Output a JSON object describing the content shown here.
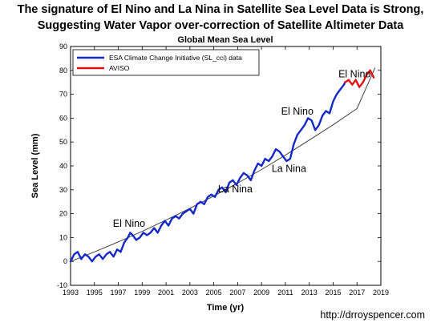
{
  "headline": {
    "line1": "The signature of El Nino and La Nina in Satellite Sea Level Data is Strong,",
    "line2": "Suggesting Water Vapor over-correction of Satellite Altimeter Data"
  },
  "credit": "http://drroyspencer.com",
  "chart_data": {
    "type": "line",
    "title": "Global Mean Sea Level",
    "xlabel": "Time (yr)",
    "ylabel": "Sea Level (mm)",
    "xlim": [
      1993,
      2019
    ],
    "ylim": [
      -10,
      90
    ],
    "xticks": [
      1993,
      1995,
      1997,
      1999,
      2001,
      2003,
      2005,
      2007,
      2009,
      2011,
      2013,
      2015,
      2017,
      2019
    ],
    "yticks": [
      -10,
      0,
      10,
      20,
      30,
      40,
      50,
      60,
      70,
      80,
      90
    ],
    "grid": false,
    "legend_position": "top-left",
    "series": [
      {
        "name": "ESA Climate Change Initiative (SL_cci) data",
        "color": "#1428c8",
        "x": [
          1993.0,
          1993.3,
          1993.6,
          1993.9,
          1994.2,
          1994.5,
          1994.8,
          1995.1,
          1995.4,
          1995.7,
          1996.0,
          1996.3,
          1996.6,
          1996.9,
          1997.2,
          1997.5,
          1997.8,
          1998.0,
          1998.2,
          1998.5,
          1998.8,
          1999.1,
          1999.4,
          1999.7,
          2000.0,
          2000.3,
          2000.6,
          2000.9,
          2001.2,
          2001.5,
          2001.8,
          2002.1,
          2002.4,
          2002.7,
          2003.0,
          2003.3,
          2003.6,
          2003.9,
          2004.2,
          2004.5,
          2004.8,
          2005.1,
          2005.4,
          2005.7,
          2006.0,
          2006.3,
          2006.6,
          2006.9,
          2007.2,
          2007.5,
          2007.8,
          2008.1,
          2008.4,
          2008.7,
          2009.0,
          2009.3,
          2009.6,
          2009.9,
          2010.2,
          2010.5,
          2010.8,
          2011.1,
          2011.4,
          2011.7,
          2012.0,
          2012.3,
          2012.6,
          2012.9,
          2013.2,
          2013.5,
          2013.8,
          2014.1,
          2014.4,
          2014.7,
          2015.0,
          2015.3,
          2015.6,
          2015.9,
          2016.0
        ],
        "values": [
          0,
          3,
          4,
          1,
          3,
          2,
          0,
          2,
          3,
          1,
          3,
          4,
          2,
          5,
          4,
          8,
          10,
          12,
          11,
          9,
          10,
          12,
          11,
          12,
          14,
          12,
          15,
          17,
          15,
          18,
          19,
          18,
          20,
          21,
          22,
          20,
          24,
          25,
          24,
          27,
          28,
          27,
          30,
          31,
          29,
          33,
          34,
          32,
          35,
          37,
          36,
          34,
          38,
          41,
          40,
          43,
          42,
          44,
          47,
          46,
          44,
          42,
          43,
          49,
          53,
          55,
          57,
          60,
          59,
          55,
          57,
          61,
          63,
          62,
          67,
          70,
          72,
          74,
          75
        ]
      },
      {
        "name": "AVISO",
        "color": "#e01010",
        "x": [
          2016.0,
          2016.3,
          2016.6,
          2016.9,
          2017.2,
          2017.5,
          2017.8,
          2018.1,
          2018.4
        ],
        "values": [
          75,
          76,
          74,
          76,
          73,
          75,
          78,
          80,
          77
        ]
      },
      {
        "name": "",
        "color": "#404040",
        "x": [
          1993,
          1995,
          1997,
          1999,
          2001,
          2003,
          2005,
          2007,
          2009,
          2011,
          2013,
          2015,
          2017,
          2018.5
        ],
        "values": [
          0,
          4,
          8.2,
          12.6,
          17.3,
          22.2,
          27.4,
          32.8,
          38.5,
          44.5,
          50.8,
          57.2,
          64,
          81
        ]
      }
    ],
    "annotations": [
      {
        "text": "El Nino",
        "x": 1997.9,
        "y": 14.5
      },
      {
        "text": "La Nina",
        "x": 2006.8,
        "y": 29
      },
      {
        "text": "La Nina",
        "x": 2011.3,
        "y": 37.5
      },
      {
        "text": "El Nino",
        "x": 2012.0,
        "y": 61.5
      },
      {
        "text": "El Nino",
        "x": 2016.8,
        "y": 77
      }
    ]
  }
}
